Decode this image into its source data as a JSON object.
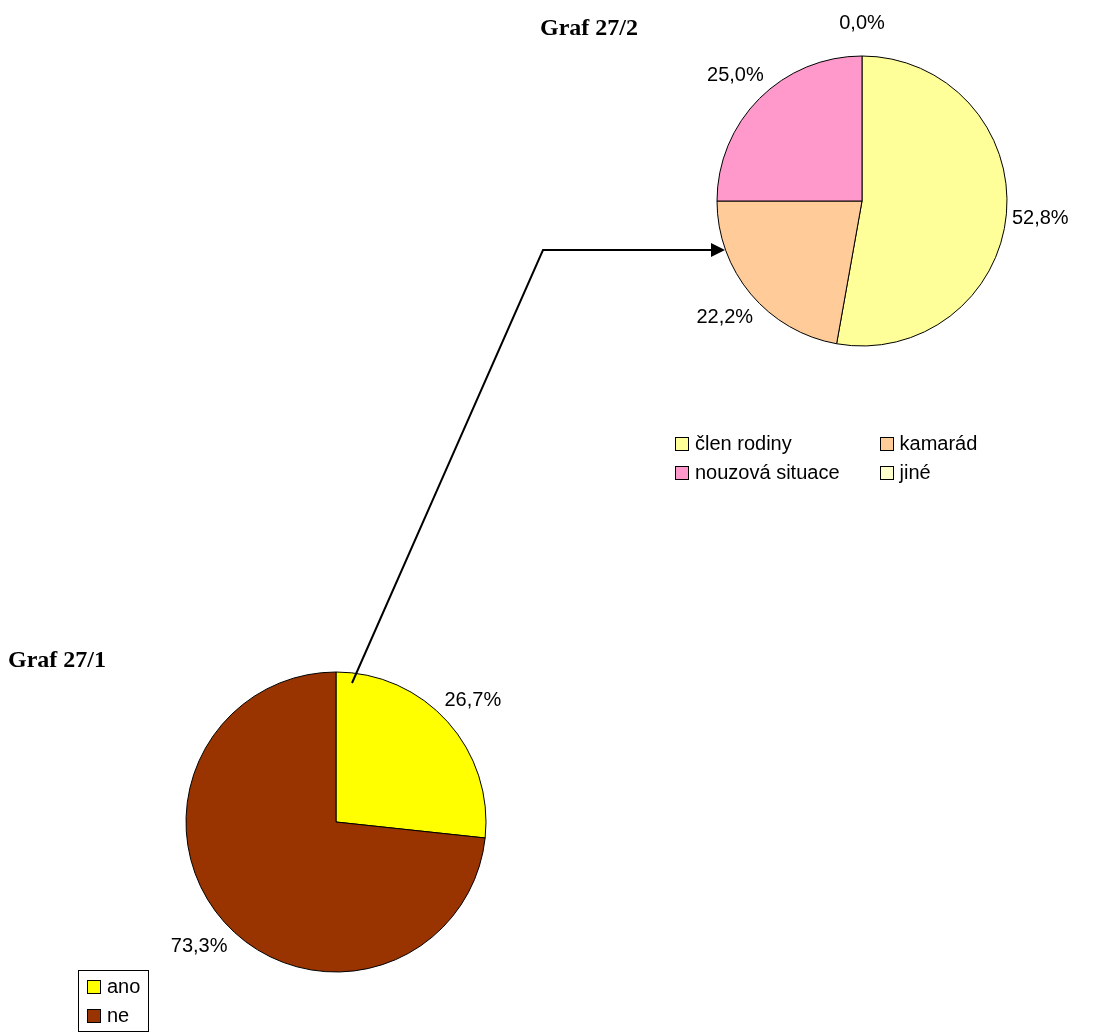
{
  "chart_data": [
    {
      "type": "pie",
      "title": "Graf 27/2",
      "categories": [
        "člen rodiny",
        "kamarád",
        "nouzová situace",
        "jiné"
      ],
      "values": [
        52.8,
        22.2,
        25.0,
        0.0
      ],
      "value_labels": [
        "52,8%",
        "22,2%",
        "25,0%",
        "0,0%"
      ],
      "colors": [
        "#ffff99",
        "#ffcc99",
        "#ff99cc",
        "#ffffcc"
      ],
      "legend": "bottom"
    },
    {
      "type": "pie",
      "title": "Graf 27/1",
      "categories": [
        "ano",
        "ne"
      ],
      "values": [
        26.7,
        73.3
      ],
      "value_labels": [
        "26,7%",
        "73,3%"
      ],
      "colors": [
        "#ffff00",
        "#993300"
      ],
      "legend": "bottom left"
    }
  ]
}
